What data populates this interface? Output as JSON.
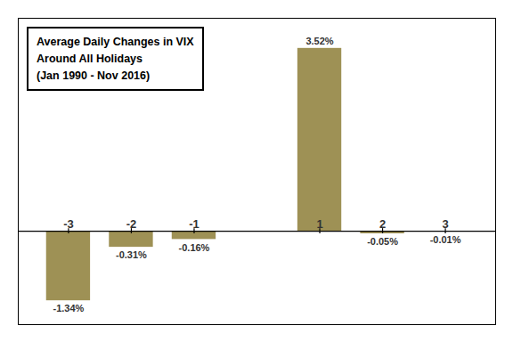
{
  "chart_data": {
    "type": "bar",
    "title": "Average Daily Changes in VIX",
    "subtitle": [
      "Around All Holidays",
      "(Jan 1990 - Nov 2016)"
    ],
    "x": [
      -3,
      -2,
      -1,
      1,
      2,
      3
    ],
    "values": [
      -1.34,
      -0.31,
      -0.16,
      3.52,
      -0.05,
      -0.01
    ],
    "value_labels": [
      "-1.34%",
      "-0.31%",
      "-0.16%",
      "3.52%",
      "-0.05%",
      "-0.01%"
    ],
    "data_labels": true,
    "color": "#9e9155",
    "xlim": [
      -3.8,
      3.8
    ],
    "xticks": [
      -3,
      -2,
      -1,
      1,
      2,
      3
    ],
    "ylim": [
      -1.8,
      4.1
    ],
    "yticks": [],
    "tick_labels": "x",
    "grid": false
  }
}
